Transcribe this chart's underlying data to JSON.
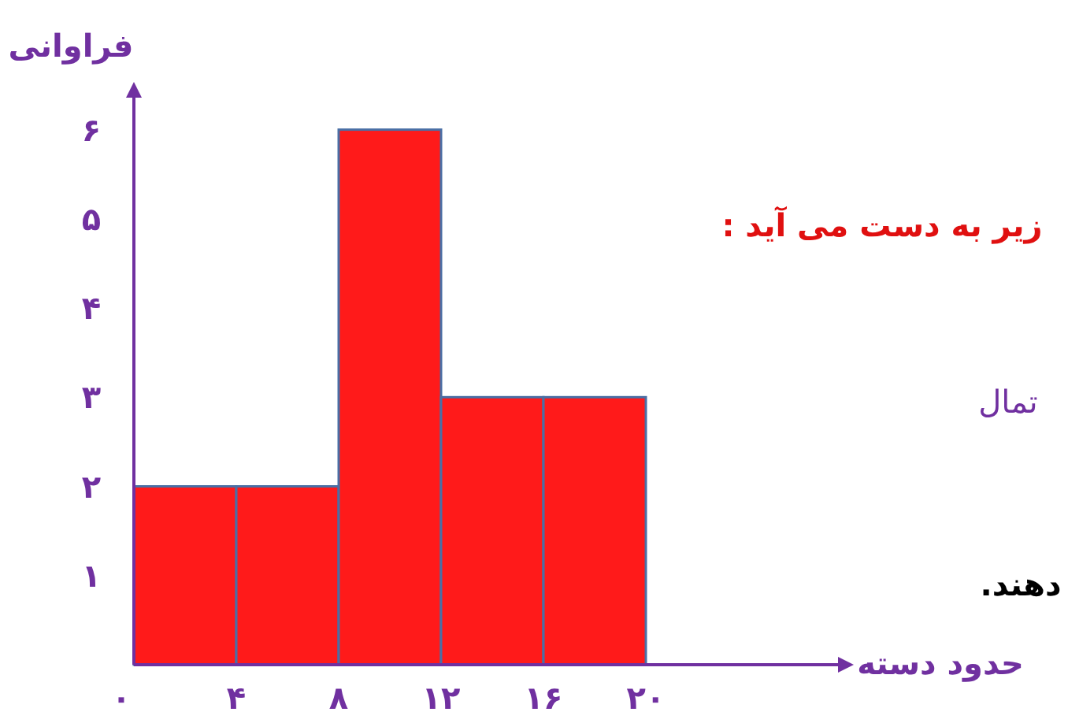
{
  "chart_data": {
    "type": "histogram",
    "xlabel": "حدود دسته",
    "ylabel": "فراوانی",
    "bins": [
      0,
      4,
      8,
      12,
      16,
      20
    ],
    "values": [
      2,
      2,
      6,
      3,
      3
    ],
    "color": "#ff1a1a",
    "xlim": [
      0,
      28
    ],
    "ylim": [
      0,
      6.5
    ],
    "xticks": [
      {
        "value": 0,
        "label": "۰"
      },
      {
        "value": 4,
        "label": "۴"
      },
      {
        "value": 8,
        "label": "۸"
      },
      {
        "value": 12,
        "label": "۱۲"
      },
      {
        "value": 16,
        "label": "۱۶"
      },
      {
        "value": 20,
        "label": "۲۰"
      }
    ],
    "yticks": [
      {
        "value": 1,
        "label": "۱"
      },
      {
        "value": 2,
        "label": "۲"
      },
      {
        "value": 3,
        "label": "۳"
      },
      {
        "value": 4,
        "label": "۴"
      },
      {
        "value": 5,
        "label": "۵"
      },
      {
        "value": 6,
        "label": "۶"
      }
    ],
    "annotations": [
      "زیر به دست می آید :",
      "تمال",
      "دهند."
    ]
  }
}
